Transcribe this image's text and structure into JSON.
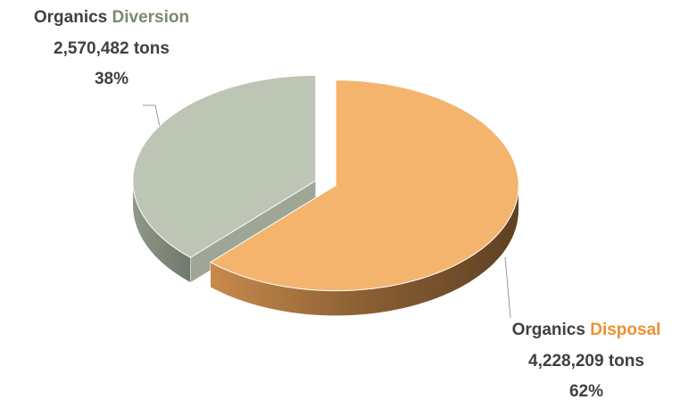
{
  "chart_data": {
    "type": "pie",
    "categories": [
      "Diversion",
      "Disposal"
    ],
    "category_prefixes": [
      "Organics",
      "Organics"
    ],
    "amount_labels": [
      "2,570,482 tons",
      "4,228,209 tons"
    ],
    "values": [
      38,
      62
    ],
    "value_labels": [
      "38%",
      "62%"
    ],
    "colors": [
      "#bdc5b5",
      "#f4b46e"
    ],
    "label_colors": [
      "#7a8a6c",
      "#ee8f2e"
    ]
  }
}
